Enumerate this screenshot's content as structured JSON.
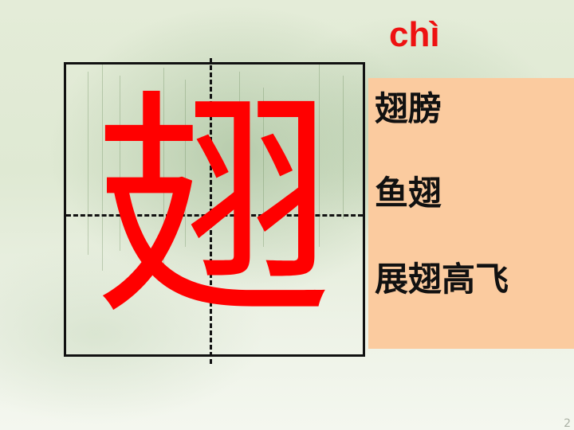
{
  "slide": {
    "pinyin": "chì",
    "character": "翅",
    "words": [
      "翅膀",
      "鱼翅",
      "展翅高飞"
    ],
    "page_mark": "2"
  },
  "colors": {
    "pinyin": "#ee1111",
    "character": "#ff0000",
    "panel": "#fbcb9f",
    "grid": "#111111"
  }
}
